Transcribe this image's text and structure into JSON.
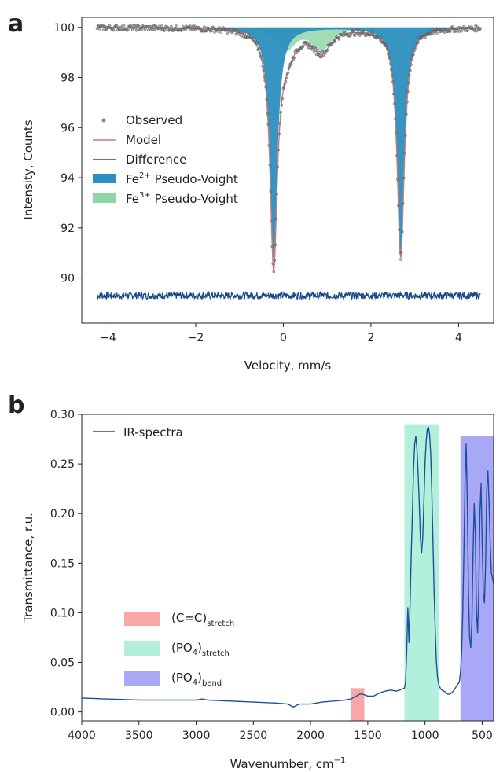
{
  "chart_data": [
    {
      "panel": "a",
      "type": "line",
      "xlabel": "Velocity, mm/s",
      "ylabel": "Intensity, Counts",
      "xlim": [
        -4.6,
        4.8
      ],
      "ylim": [
        88.2,
        100.4
      ],
      "xticks": [
        -4,
        -2,
        0,
        2,
        4
      ],
      "yticks": [
        90,
        92,
        94,
        96,
        98,
        100
      ],
      "legend_position": "center-left",
      "baseline": 100.0,
      "x_range": [
        -4.25,
        4.5
      ],
      "fe2_peaks": [
        {
          "center": -0.22,
          "depth": 9.25,
          "width": 0.1
        },
        {
          "center": 2.68,
          "depth": 9.15,
          "width": 0.1
        }
      ],
      "fe3_peaks": [
        {
          "center": 0.06,
          "depth": 0.9,
          "width": 0.25
        },
        {
          "center": 0.87,
          "depth": 0.9,
          "width": 0.25
        }
      ],
      "difference_level": 89.3,
      "series": [
        {
          "name": "Observed",
          "style": "scatter",
          "color": "#999999"
        },
        {
          "name": "Model",
          "style": "line",
          "color": "#c97a7a"
        },
        {
          "name": "Difference",
          "style": "line",
          "color": "#1a4a8a"
        },
        {
          "name": "Fe",
          "sup": "2+",
          "suffix": " Pseudo-Voight",
          "style": "area",
          "color": "#2b8fbf"
        },
        {
          "name": "Fe",
          "sup": "3+",
          "suffix": " Pseudo-Voight",
          "style": "area",
          "color": "#8fd6a8"
        }
      ]
    },
    {
      "panel": "b",
      "type": "line",
      "xlabel": "Wavenumber, cm",
      "xlabel_sup": "−1",
      "ylabel": "Transmittance, r.u.",
      "xlim": [
        4000,
        400
      ],
      "ylim": [
        -0.009,
        0.3
      ],
      "xticks": [
        4000,
        3500,
        3000,
        2500,
        2000,
        1500,
        1000,
        500
      ],
      "yticks": [
        0.0,
        0.05,
        0.1,
        0.15,
        0.2,
        0.25,
        0.3
      ],
      "ytick_labels": [
        "0.00",
        "0.05",
        "0.10",
        "0.15",
        "0.20",
        "0.25",
        "0.30"
      ],
      "legend_position": "top-left",
      "series": [
        {
          "name": "IR-spectra",
          "color": "#1f4f9a",
          "x": [
            4000,
            3500,
            3000,
            2950,
            2900,
            2500,
            2300,
            2200,
            2150,
            2100,
            2000,
            1900,
            1800,
            1700,
            1650,
            1600,
            1570,
            1550,
            1520,
            1500,
            1450,
            1400,
            1350,
            1300,
            1250,
            1200,
            1180,
            1170,
            1160,
            1150,
            1140,
            1130,
            1120,
            1110,
            1100,
            1090,
            1080,
            1070,
            1060,
            1050,
            1040,
            1030,
            1020,
            1010,
            1000,
            990,
            980,
            970,
            960,
            950,
            940,
            930,
            920,
            910,
            900,
            890,
            880,
            870,
            860,
            850,
            820,
            800,
            780,
            760,
            740,
            720,
            700,
            690,
            680,
            670,
            660,
            650,
            640,
            630,
            620,
            610,
            600,
            590,
            580,
            570,
            560,
            550,
            540,
            530,
            520,
            510,
            500,
            490,
            480,
            470,
            460,
            450,
            440,
            430,
            420,
            410,
            400
          ],
          "values": [
            0.014,
            0.012,
            0.012,
            0.013,
            0.012,
            0.01,
            0.009,
            0.008,
            0.005,
            0.008,
            0.008,
            0.01,
            0.011,
            0.012,
            0.013,
            0.016,
            0.018,
            0.018,
            0.017,
            0.016,
            0.016,
            0.019,
            0.021,
            0.022,
            0.021,
            0.023,
            0.024,
            0.03,
            0.06,
            0.105,
            0.07,
            0.11,
            0.16,
            0.2,
            0.245,
            0.27,
            0.278,
            0.265,
            0.24,
            0.21,
            0.175,
            0.16,
            0.175,
            0.21,
            0.25,
            0.272,
            0.285,
            0.287,
            0.28,
            0.26,
            0.22,
            0.17,
            0.12,
            0.08,
            0.05,
            0.035,
            0.028,
            0.025,
            0.023,
            0.022,
            0.02,
            0.018,
            0.018,
            0.02,
            0.023,
            0.027,
            0.03,
            0.04,
            0.06,
            0.1,
            0.16,
            0.23,
            0.27,
            0.21,
            0.12,
            0.075,
            0.065,
            0.09,
            0.16,
            0.21,
            0.18,
            0.1,
            0.08,
            0.12,
            0.2,
            0.23,
            0.17,
            0.12,
            0.11,
            0.15,
            0.225,
            0.243,
            0.21,
            0.17,
            0.14,
            0.135,
            0.13
          ]
        }
      ],
      "bands": [
        {
          "name": "(C=C)",
          "sub": "stretch",
          "x_from": 1650,
          "x_to": 1530,
          "y_to": 0.024,
          "color": "#f7a7a5"
        },
        {
          "name": "(PO",
          "name_sub": "4",
          "name_after": ")",
          "sub": "stretch",
          "x_from": 1180,
          "x_to": 880,
          "y_to": 0.29,
          "color": "#b3f0dc"
        },
        {
          "name": "(PO",
          "name_sub": "4",
          "name_after": ")",
          "sub": "bend",
          "x_from": 690,
          "x_to": 400,
          "y_to": 0.278,
          "color": "#a8a8f7"
        }
      ]
    }
  ],
  "panel_labels": [
    "a",
    "b"
  ]
}
